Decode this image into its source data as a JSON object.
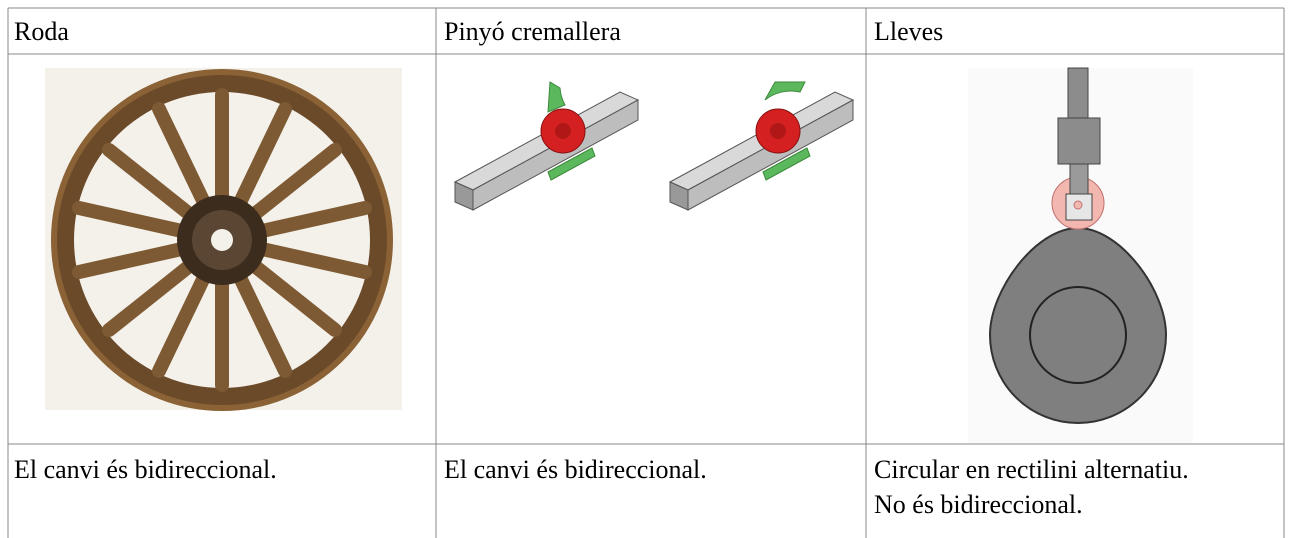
{
  "table": {
    "header": [
      "Roda",
      "Pinyó cremallera",
      "Lleves"
    ],
    "rows": [
      [
        "El canvi és bidireccional.",
        "El canvi és bidireccional.",
        [
          "Circular en rectilini alternatiu.",
          "No és bidireccional."
        ]
      ]
    ]
  }
}
